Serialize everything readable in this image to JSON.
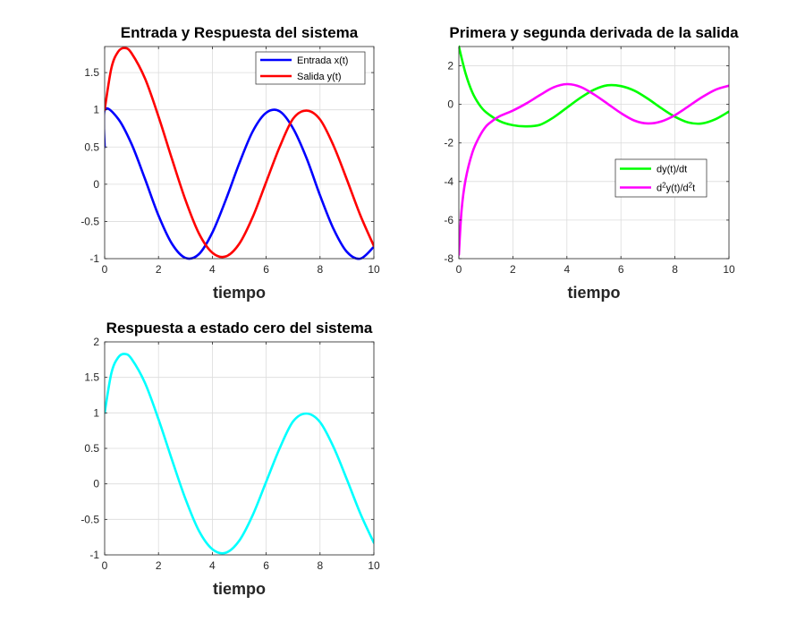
{
  "chart_data": [
    {
      "type": "line",
      "title": "Entrada y Respuesta del sistema",
      "xlabel": "tiempo",
      "ylabel": "",
      "xlim": [
        0,
        10
      ],
      "ylim": [
        -1,
        1.85
      ],
      "xticks": [
        0,
        2,
        4,
        6,
        8,
        10
      ],
      "yticks": [
        -1,
        -0.5,
        0,
        0.5,
        1,
        1.5
      ],
      "grid": true,
      "legend_position": "top-right",
      "series": [
        {
          "name": "Entrada x(t)",
          "color": "#0000ff",
          "x": [
            0,
            0.005,
            0.5,
            1,
            1.5,
            2,
            2.5,
            3,
            3.5,
            4,
            4.5,
            5,
            5.5,
            6,
            6.5,
            7,
            7.5,
            8,
            8.5,
            9,
            9.5,
            10
          ],
          "y": [
            0.5,
            1.0,
            0.88,
            0.54,
            0.07,
            -0.42,
            -0.8,
            -0.99,
            -0.94,
            -0.65,
            -0.21,
            0.28,
            0.71,
            0.96,
            0.98,
            0.75,
            0.35,
            -0.15,
            -0.6,
            -0.91,
            -1.0,
            -0.84
          ]
        },
        {
          "name": "Salida y(t)",
          "color": "#ff0000",
          "x": [
            0,
            0.25,
            0.5,
            0.75,
            1,
            1.5,
            2,
            2.5,
            3,
            3.5,
            4,
            4.5,
            5,
            5.5,
            6,
            6.5,
            7,
            7.5,
            8,
            8.5,
            9,
            9.5,
            10
          ],
          "y": [
            1.0,
            1.56,
            1.78,
            1.83,
            1.76,
            1.42,
            0.91,
            0.34,
            -0.21,
            -0.66,
            -0.92,
            -0.97,
            -0.8,
            -0.44,
            0.03,
            0.5,
            0.88,
            0.99,
            0.87,
            0.52,
            0.06,
            -0.42,
            -0.83
          ]
        }
      ]
    },
    {
      "type": "line",
      "title": "Primera y segunda derivada de la salida",
      "xlabel": "tiempo",
      "ylabel": "",
      "xlim": [
        0,
        10
      ],
      "ylim": [
        -8,
        3
      ],
      "xticks": [
        0,
        2,
        4,
        6,
        8,
        10
      ],
      "yticks": [
        -8,
        -6,
        -4,
        -2,
        0,
        2
      ],
      "grid": true,
      "legend_position": "right-middle",
      "series": [
        {
          "name": "dy(t)/dt",
          "color": "#00ff00",
          "x": [
            0,
            0.25,
            0.5,
            0.75,
            1,
            1.5,
            2,
            2.5,
            3,
            3.5,
            4,
            4.5,
            5,
            5.5,
            6,
            6.5,
            7,
            7.5,
            8,
            8.5,
            9,
            9.5,
            10
          ],
          "y": [
            3.0,
            1.6,
            0.62,
            0.0,
            -0.4,
            -0.86,
            -1.08,
            -1.14,
            -1.06,
            -0.68,
            -0.17,
            0.34,
            0.76,
            0.99,
            0.95,
            0.71,
            0.29,
            -0.2,
            -0.64,
            -0.94,
            -0.99,
            -0.77,
            -0.37
          ]
        },
        {
          "name": "d^2y(t)/d^2t",
          "sup_label": true,
          "color": "#ff00ff",
          "x": [
            0,
            0.1,
            0.25,
            0.5,
            0.75,
            1,
            1.25,
            1.5,
            2,
            2.5,
            3,
            3.5,
            4,
            4.5,
            5,
            5.5,
            6,
            6.5,
            7,
            7.5,
            8,
            8.5,
            9,
            9.5,
            10
          ],
          "y": [
            -7.8,
            -5.5,
            -3.9,
            -2.5,
            -1.7,
            -1.15,
            -0.85,
            -0.62,
            -0.32,
            0.05,
            0.48,
            0.88,
            1.05,
            0.91,
            0.52,
            0.04,
            -0.45,
            -0.84,
            -0.99,
            -0.88,
            -0.56,
            -0.1,
            0.37,
            0.76,
            0.97
          ]
        }
      ]
    },
    {
      "type": "line",
      "title": "Respuesta a estado cero del sistema",
      "xlabel": "tiempo",
      "ylabel": "",
      "xlim": [
        0,
        10
      ],
      "ylim": [
        -1,
        2
      ],
      "xticks": [
        0,
        2,
        4,
        6,
        8,
        10
      ],
      "yticks": [
        -1,
        -0.5,
        0,
        0.5,
        1,
        1.5,
        2
      ],
      "grid": true,
      "series": [
        {
          "color": "#00ffff",
          "x": [
            0,
            0.25,
            0.5,
            0.75,
            1,
            1.5,
            2,
            2.5,
            3,
            3.5,
            4,
            4.5,
            5,
            5.5,
            6,
            6.5,
            7,
            7.5,
            8,
            8.5,
            9,
            9.5,
            10
          ],
          "y": [
            1.0,
            1.56,
            1.78,
            1.83,
            1.76,
            1.42,
            0.91,
            0.34,
            -0.21,
            -0.66,
            -0.92,
            -0.97,
            -0.8,
            -0.44,
            0.03,
            0.5,
            0.88,
            0.99,
            0.87,
            0.52,
            0.06,
            -0.42,
            -0.83
          ]
        }
      ]
    }
  ]
}
